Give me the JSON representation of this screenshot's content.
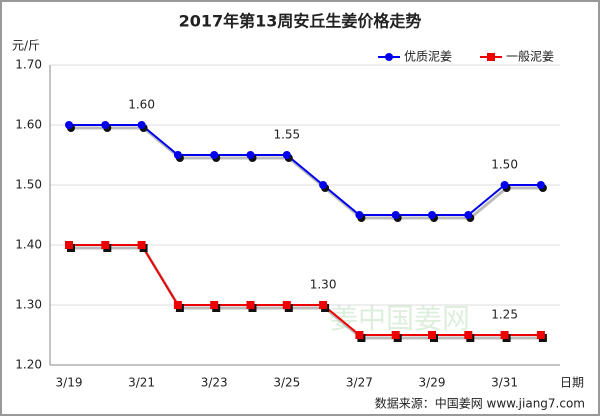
{
  "chart_data": {
    "type": "line",
    "title": "2017年第13周安丘生姜价格走势",
    "y_label": "元/斤",
    "x_label": "日期",
    "source": "数据来源：中国姜网 www.jiang7.com",
    "watermark": "姜中国姜网",
    "categories": [
      "3/19",
      null,
      "3/21",
      null,
      "3/23",
      null,
      "3/25",
      null,
      "3/27",
      null,
      "3/29",
      null,
      "3/31",
      null
    ],
    "series": [
      {
        "name": "优质泥姜",
        "color": "#0000ee",
        "marker": "circle",
        "values": [
          1.6,
          1.6,
          1.6,
          1.55,
          1.55,
          1.55,
          1.55,
          1.5,
          1.45,
          1.45,
          1.45,
          1.45,
          1.5,
          1.5
        ],
        "value_labels": [
          null,
          null,
          "1.60",
          null,
          null,
          null,
          "1.55",
          null,
          null,
          null,
          null,
          null,
          "1.50",
          null
        ]
      },
      {
        "name": "一般泥姜",
        "color": "#ee0000",
        "marker": "square",
        "values": [
          1.4,
          1.4,
          1.4,
          1.3,
          1.3,
          1.3,
          1.3,
          1.3,
          1.25,
          1.25,
          1.25,
          1.25,
          1.25,
          1.25
        ],
        "value_labels": [
          null,
          null,
          null,
          null,
          null,
          null,
          null,
          "1.30",
          null,
          null,
          null,
          null,
          "1.25",
          null
        ]
      }
    ],
    "ylim": [
      1.2,
      1.7
    ],
    "yticks": [
      {
        "value": 1.2,
        "label": "1.20"
      },
      {
        "value": 1.3,
        "label": "1.30"
      },
      {
        "value": 1.4,
        "label": "1.40"
      },
      {
        "value": 1.5,
        "label": "1.50"
      },
      {
        "value": 1.6,
        "label": "1.60"
      },
      {
        "value": 1.7,
        "label": "1.70"
      }
    ],
    "grid": true,
    "legend": "top-right"
  }
}
